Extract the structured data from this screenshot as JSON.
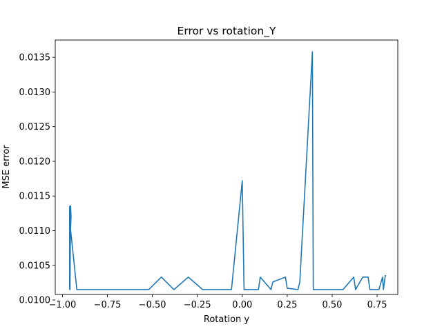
{
  "chart_data": {
    "type": "line",
    "title": "Error vs rotation_Y",
    "xlabel": "Rotation y",
    "ylabel": "MSE error",
    "xlim": [
      -1.04,
      0.865
    ],
    "ylim": [
      0.01008,
      0.01375
    ],
    "xticks": [
      -1.0,
      -0.75,
      -0.5,
      -0.25,
      0.0,
      0.25,
      0.5,
      0.75
    ],
    "xtick_labels": [
      "−1.00",
      "−0.75",
      "−0.50",
      "−0.25",
      "0.00",
      "0.25",
      "0.50",
      "0.75"
    ],
    "yticks": [
      0.01,
      0.0105,
      0.011,
      0.0115,
      0.012,
      0.0125,
      0.013,
      0.0135
    ],
    "ytick_labels": [
      "0.0100",
      "0.0105",
      "0.0110",
      "0.0115",
      "0.0120",
      "0.0125",
      "0.0130",
      "0.0135"
    ],
    "grid": false,
    "line_color": "#1f77b4",
    "series": [
      {
        "x": [
          -0.96,
          -0.96,
          -0.958,
          -0.955,
          -0.952,
          -0.955,
          -0.92,
          -0.7,
          -0.52,
          -0.45,
          -0.38,
          -0.3,
          -0.22,
          -0.06,
          0.0,
          0.01,
          0.09,
          0.1,
          0.16,
          0.17,
          0.24,
          0.25,
          0.31,
          0.32,
          0.39,
          0.395,
          0.45,
          0.56,
          0.62,
          0.63,
          0.67,
          0.7,
          0.71,
          0.76,
          0.78,
          0.785,
          0.795,
          0.8
        ],
        "y": [
          0.01015,
          0.01135,
          0.01015,
          0.01136,
          0.0112,
          0.01102,
          0.01015,
          0.01015,
          0.01015,
          0.01033,
          0.01015,
          0.01033,
          0.01015,
          0.01015,
          0.01172,
          0.01015,
          0.01015,
          0.01033,
          0.01015,
          0.01026,
          0.01033,
          0.01017,
          0.01015,
          0.01026,
          0.01358,
          0.01015,
          0.01015,
          0.01015,
          0.01033,
          0.01015,
          0.01033,
          0.01033,
          0.01015,
          0.01015,
          0.01033,
          0.01015,
          0.01035,
          0.01035
        ]
      }
    ]
  }
}
